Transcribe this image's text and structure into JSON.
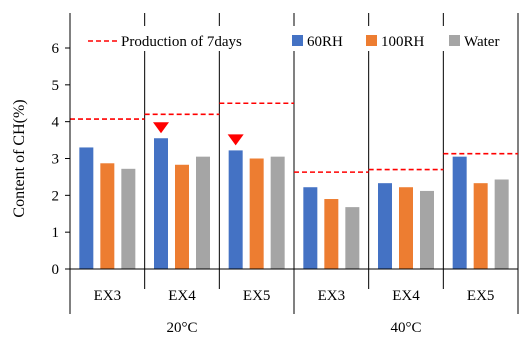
{
  "chart_data": {
    "type": "bar",
    "ylabel": "Content of CH(%)",
    "ylim": [
      0,
      6
    ],
    "y_ticks": [
      "0",
      "1",
      "2",
      "3",
      "4",
      "5",
      "6"
    ],
    "grid": false,
    "legend_position": "top",
    "categories": [
      "EX3",
      "EX4",
      "EX5",
      "EX3",
      "EX4",
      "EX5"
    ],
    "groups": [
      {
        "label": "20°C",
        "span": [
          0,
          2
        ]
      },
      {
        "label": "40°C",
        "span": [
          3,
          5
        ]
      }
    ],
    "series": [
      {
        "name": "60RH",
        "color": "#4472c4",
        "values": [
          3.3,
          3.55,
          3.22,
          2.22,
          2.33,
          3.05
        ]
      },
      {
        "name": "100RH",
        "color": "#ed7d31",
        "values": [
          2.87,
          2.83,
          3.0,
          1.9,
          2.22,
          2.33
        ]
      },
      {
        "name": "Water",
        "color": "#a5a5a5",
        "values": [
          2.72,
          3.05,
          3.05,
          1.68,
          2.12,
          2.43
        ]
      }
    ],
    "reference_line": {
      "name": "Production of 7days",
      "color": "#ff0000",
      "values": [
        4.07,
        4.2,
        4.5,
        2.63,
        2.7,
        3.13
      ]
    },
    "markers": {
      "color": "#ff0000",
      "shape": "triangle-down",
      "categories": [
        1,
        2
      ]
    }
  }
}
